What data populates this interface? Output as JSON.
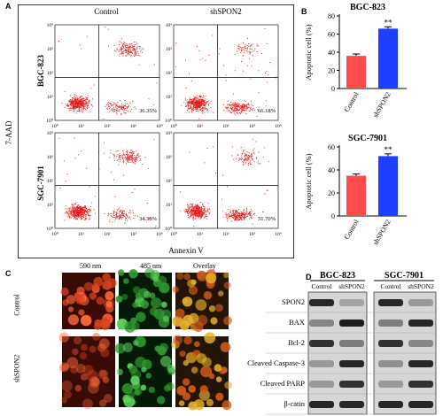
{
  "panels": {
    "A": "A",
    "B": "B",
    "C": "C",
    "D": "D"
  },
  "flow": {
    "columns": [
      "Control",
      "shSPON2"
    ],
    "rows": [
      "BGC-823",
      "SGC-7901"
    ],
    "ylabel": "7-AAD",
    "xlabel": "Annexin V",
    "percents": [
      [
        "36.35%",
        "66.18%"
      ],
      [
        "34.38%",
        "51.70%"
      ]
    ],
    "ticks": [
      "10⁰",
      "10¹",
      "10²",
      "10³",
      "10⁴"
    ],
    "dot_color": "#e01b1b"
  },
  "chart_data": [
    {
      "type": "bar",
      "title": "BGC-823",
      "categories": [
        "Control",
        "shSPON2"
      ],
      "values": [
        36,
        66
      ],
      "errors": [
        2,
        2
      ],
      "significance": "**",
      "ylabel": "Apoptotic cell (%)",
      "ylim": [
        0,
        80
      ],
      "yticks": [
        0,
        20,
        40,
        60,
        80
      ],
      "colors": [
        "#ff4b4b",
        "#1f3fff"
      ]
    },
    {
      "type": "bar",
      "title": "SGC-7901",
      "categories": [
        "Control",
        "shSPON2"
      ],
      "values": [
        35,
        52
      ],
      "errors": [
        1.5,
        2
      ],
      "significance": "**",
      "ylabel": "Apoptotic cell (%)",
      "ylim": [
        0,
        60
      ],
      "yticks": [
        0,
        20,
        40,
        60
      ],
      "colors": [
        "#ff4b4b",
        "#1f3fff"
      ]
    }
  ],
  "microscopy": {
    "columns": [
      "590 nm",
      "485 nm",
      "Overlay"
    ],
    "rows": [
      "Control",
      "shSPON2"
    ]
  },
  "western": {
    "groups": [
      "BGC-823",
      "SGC-7901"
    ],
    "lanes": [
      "Control",
      "shSPON2",
      "Control",
      "shSPON2"
    ],
    "proteins": [
      "SPON2",
      "BAX",
      "Bcl-2",
      "Cleaved Caspase-3",
      "Cleaved PARP",
      "β-catin"
    ]
  }
}
